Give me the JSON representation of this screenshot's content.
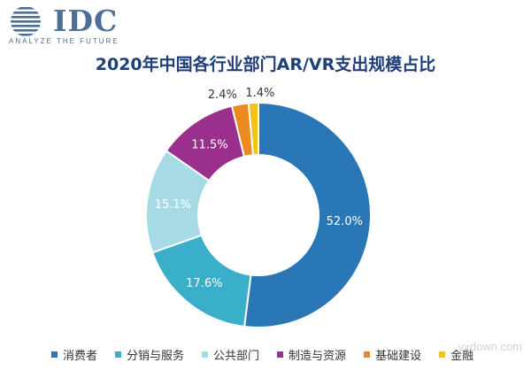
{
  "brand": {
    "logo_text": "IDC",
    "tagline": "ANALYZE THE FUTURE",
    "color": "#4d6f96"
  },
  "watermark": {
    "text": "yxdown.com"
  },
  "chart_data": {
    "type": "pie",
    "title": "2020年中国各行业部门AR/VR支出规模占比",
    "donut": true,
    "legend_position": "bottom",
    "slices": [
      {
        "name": "消费者",
        "value": 52.0,
        "label": "52.0%",
        "color": "#2a77b8"
      },
      {
        "name": "分销与服务",
        "value": 17.6,
        "label": "17.6%",
        "color": "#3aafc9"
      },
      {
        "name": "公共部门",
        "value": 15.1,
        "label": "15.1%",
        "color": "#a6dbe6"
      },
      {
        "name": "制造与资源",
        "value": 11.5,
        "label": "11.5%",
        "color": "#9a2f8e"
      },
      {
        "name": "基础建设",
        "value": 2.4,
        "label": "2.4%",
        "color": "#ea8a1f"
      },
      {
        "name": "金融",
        "value": 1.4,
        "label": "1.4%",
        "color": "#f0c419"
      }
    ]
  }
}
